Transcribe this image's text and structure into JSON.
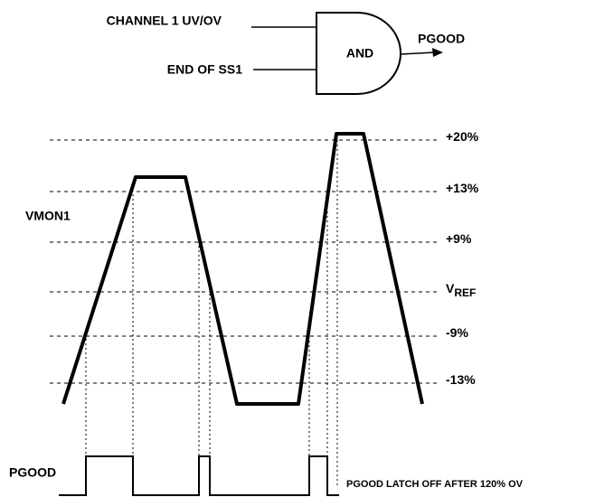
{
  "gate": {
    "inputs": [
      "CHANNEL 1 UV/OV",
      "END OF SS1"
    ],
    "label": "AND",
    "output": "PGOOD"
  },
  "levels": [
    {
      "main": "+20%"
    },
    {
      "main": "+13%"
    },
    {
      "main": "+9%"
    },
    {
      "main": "V",
      "sub": "REF"
    },
    {
      "main": "-9%"
    },
    {
      "main": "-13%"
    }
  ],
  "signal_label": "VMON1",
  "pgood_label": "PGOOD",
  "note": "PGOOD LATCH OFF AFTER 120% OV"
}
